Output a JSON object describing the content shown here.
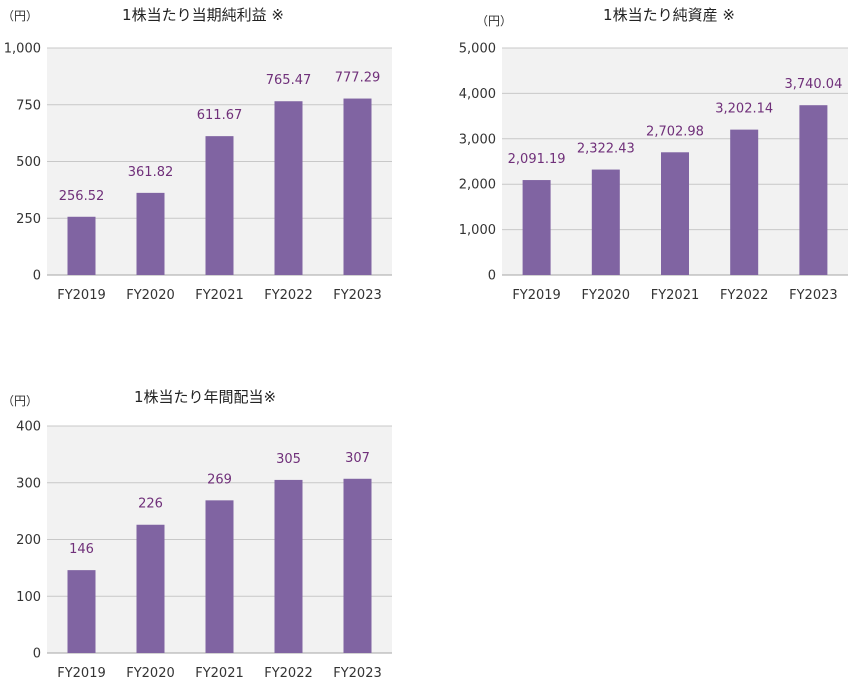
{
  "chart_data": [
    {
      "type": "bar",
      "title": "1株当たり当期純利益 ※",
      "unit": "（円）",
      "categories": [
        "FY2019",
        "FY2020",
        "FY2021",
        "FY2022",
        "FY2023"
      ],
      "values": [
        256.52,
        361.82,
        611.67,
        765.47,
        777.29
      ],
      "value_labels": [
        "256.52",
        "361.82",
        "611.67",
        "765.47",
        "777.29"
      ],
      "ylim": [
        0,
        1000
      ],
      "yticks": [
        0,
        250,
        500,
        750,
        1000
      ],
      "ytick_labels": [
        "0",
        "250",
        "500",
        "750",
        "1,000"
      ],
      "grid": true,
      "bar_color": "#8064a2",
      "label_color": "#70307a"
    },
    {
      "type": "bar",
      "title": "1株当たり純資産 ※",
      "unit": "（円）",
      "categories": [
        "FY2019",
        "FY2020",
        "FY2021",
        "FY2022",
        "FY2023"
      ],
      "values": [
        2091.19,
        2322.43,
        2702.98,
        3202.14,
        3740.04
      ],
      "value_labels": [
        "2,091.19",
        "2,322.43",
        "2,702.98",
        "3,202.14",
        "3,740.04"
      ],
      "ylim": [
        0,
        5000
      ],
      "yticks": [
        0,
        1000,
        2000,
        3000,
        4000,
        5000
      ],
      "ytick_labels": [
        "0",
        "1,000",
        "2,000",
        "3,000",
        "4,000",
        "5,000"
      ],
      "grid": true,
      "bar_color": "#8064a2",
      "label_color": "#70307a"
    },
    {
      "type": "bar",
      "title": "1株当たり年間配当※",
      "unit": "（円）",
      "categories": [
        "FY2019",
        "FY2020",
        "FY2021",
        "FY2022",
        "FY2023"
      ],
      "values": [
        146,
        226,
        269,
        305,
        307
      ],
      "value_labels": [
        "146",
        "226",
        "269",
        "305",
        "307"
      ],
      "ylim": [
        0,
        400
      ],
      "yticks": [
        0,
        100,
        200,
        300,
        400
      ],
      "ytick_labels": [
        "0",
        "100",
        "200",
        "300",
        "400"
      ],
      "grid": true,
      "bar_color": "#8064a2",
      "label_color": "#70307a"
    }
  ]
}
